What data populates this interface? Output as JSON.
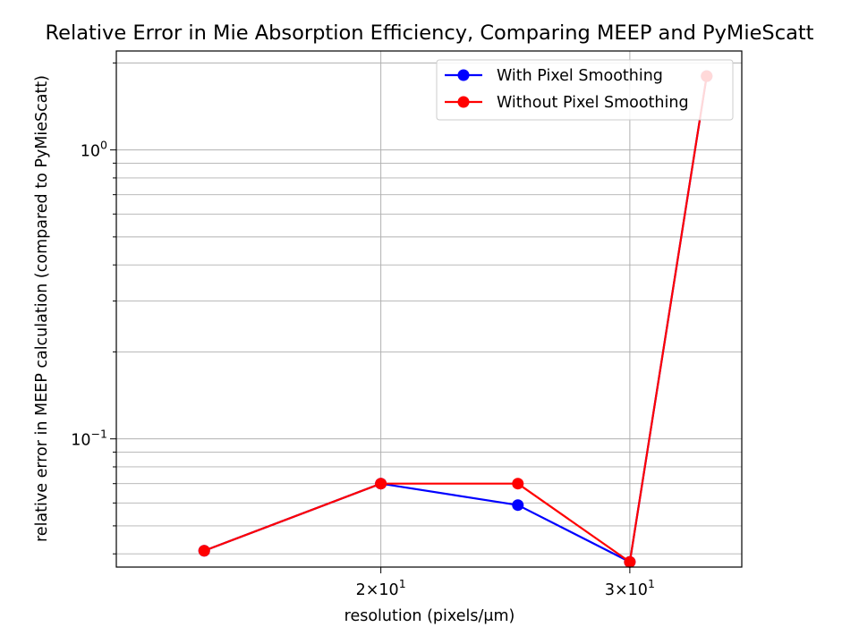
{
  "chart_data": {
    "type": "line",
    "title": "Relative Error in Mie Absorption Efficiency, Comparing MEEP and PyMieScatt",
    "xlabel": "resolution (pixels/μm)",
    "ylabel": "relative error in MEEP calculation (compared to PyMieScatt)",
    "x_scale": "log",
    "y_scale": "log",
    "xlim": [
      13.0,
      36.0
    ],
    "ylim": [
      0.036,
      2.2
    ],
    "grid": true,
    "legend_position": "top-right",
    "x_ticks": [
      {
        "value": 20,
        "mantissa": "2",
        "base": "10",
        "exponent": "1"
      },
      {
        "value": 30,
        "mantissa": "3",
        "base": "10",
        "exponent": "1"
      }
    ],
    "y_ticks": [
      {
        "value": 0.1,
        "base": "10",
        "exponent": "−1"
      },
      {
        "value": 1,
        "base": "10",
        "exponent": "0"
      }
    ],
    "x": [
      15,
      20,
      25,
      30,
      34
    ],
    "series": [
      {
        "name": "With Pixel Smoothing",
        "color": "#0000ff",
        "values": [
          0.041,
          0.07,
          0.059,
          0.0375,
          1.8
        ]
      },
      {
        "name": "Without Pixel Smoothing",
        "color": "#ff0000",
        "values": [
          0.041,
          0.07,
          0.07,
          0.0375,
          1.8
        ]
      }
    ]
  }
}
